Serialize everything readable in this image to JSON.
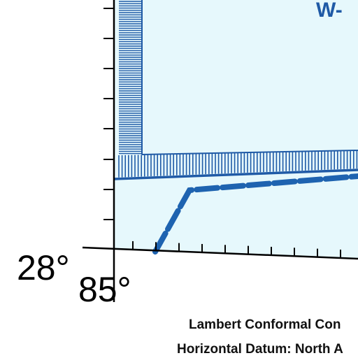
{
  "map": {
    "area_label": "W-",
    "latitude_label": "28°",
    "longitude_label": "85°",
    "projection_note": "Lambert Conformal Con",
    "datum_note": "Horizontal Datum: North A",
    "colors": {
      "water": "#e6f8fc",
      "boundary": "#1f5aa6",
      "route": "#1e63b0",
      "frame": "#000000",
      "text": "#111111"
    }
  }
}
